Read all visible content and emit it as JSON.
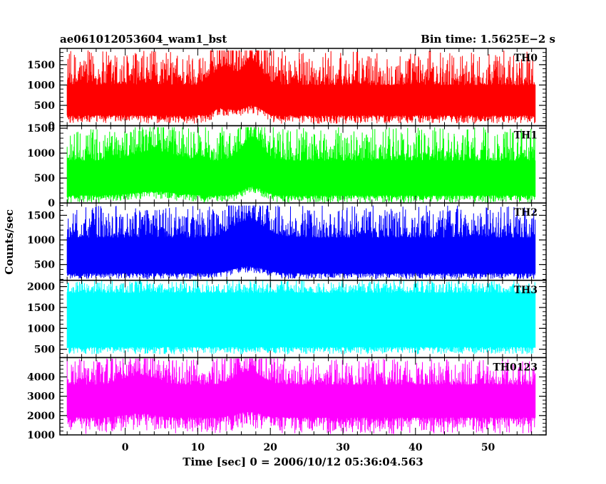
{
  "header": {
    "title": "ae061012053604_wam1_bst",
    "bin_time": "Bin time: 1.5625E−2 s"
  },
  "chart_data": {
    "type": "line",
    "title": "ae061012053604_wam1_bst",
    "subtitle": "Bin time: 1.5625E−2 s",
    "xlabel": "Time [sec] 0 = 2006/10/12 05:36:04.563",
    "ylabel": "Counts/sec",
    "xlim": [
      -9,
      58
    ],
    "x_range_data": [
      -8,
      56.5
    ],
    "x_ticks": [
      0,
      10,
      20,
      30,
      40,
      50
    ],
    "x_tick_labels": [
      "0",
      "10",
      "20",
      "30",
      "40",
      "50"
    ],
    "grid": false,
    "legend": "none",
    "panels": [
      {
        "name": "TH0",
        "color": "#ff0000",
        "ylim": [
          0,
          1900
        ],
        "y_ticks": [
          0,
          500,
          1000,
          1500
        ],
        "y_tick_labels": [
          "0",
          "500",
          "1000",
          "1500"
        ],
        "baseline_low": 250,
        "baseline_high": 1000,
        "peak_max": 1850,
        "trough_min": 50,
        "features": [
          {
            "x": 13.5,
            "amp": 450,
            "width": 2
          },
          {
            "x": 17.5,
            "amp": 600,
            "width": 1.8
          }
        ]
      },
      {
        "name": "TH1",
        "color": "#00ff00",
        "ylim": [
          0,
          1550
        ],
        "y_ticks": [
          0,
          500,
          1000,
          1500
        ],
        "y_tick_labels": [
          "0",
          "500",
          "1000",
          "1500"
        ],
        "baseline_low": 150,
        "baseline_high": 850,
        "peak_max": 1520,
        "trough_min": 0,
        "features": [
          {
            "x": 4,
            "amp": 200,
            "width": 4
          },
          {
            "x": 17.5,
            "amp": 450,
            "width": 2
          }
        ]
      },
      {
        "name": "TH2",
        "color": "#0000ff",
        "ylim": [
          180,
          1750
        ],
        "y_ticks": [
          500,
          1000,
          1500
        ],
        "y_tick_labels": [
          "500",
          "1000",
          "1500"
        ],
        "baseline_low": 320,
        "baseline_high": 1050,
        "peak_max": 1700,
        "trough_min": 200,
        "features": [
          {
            "x": 17,
            "amp": 350,
            "width": 3
          }
        ]
      },
      {
        "name": "TH3",
        "color": "#00ffff",
        "ylim": [
          300,
          2150
        ],
        "y_ticks": [
          500,
          1000,
          1500,
          2000
        ],
        "y_tick_labels": [
          "500",
          "1000",
          "1500",
          "2000"
        ],
        "baseline_low": 550,
        "baseline_high": 1850,
        "peak_max": 2150,
        "trough_min": 380,
        "features": []
      },
      {
        "name": "TH0123",
        "color": "#ff00ff",
        "ylim": [
          1000,
          5000
        ],
        "y_ticks": [
          1000,
          2000,
          3000,
          4000
        ],
        "y_tick_labels": [
          "1000",
          "2000",
          "3000",
          "4000"
        ],
        "baseline_low": 1900,
        "baseline_high": 3600,
        "peak_max": 4950,
        "trough_min": 1050,
        "features": [
          {
            "x": 2,
            "amp": 500,
            "width": 3
          },
          {
            "x": 17,
            "amp": 700,
            "width": 2.5
          }
        ]
      }
    ]
  }
}
